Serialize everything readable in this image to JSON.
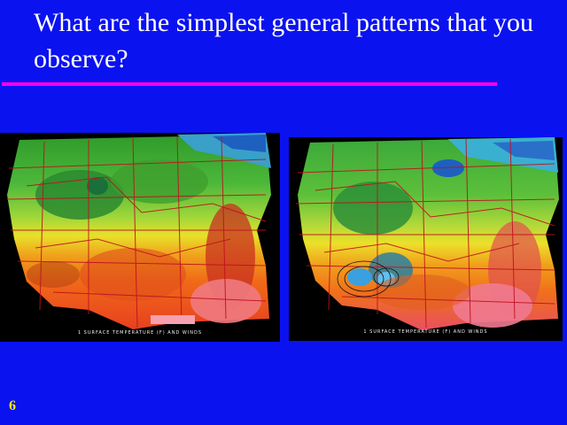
{
  "slide": {
    "title": "What are the simplest general patterns that you observe?",
    "number": "6"
  },
  "maps": [
    {
      "caption": "1 SURFACE TEMPERATURE (F) AND WINDS"
    },
    {
      "caption": "1 SURFACE TEMPERATURE (F) AND WINDS"
    }
  ],
  "colors": {
    "background": "#0b12f0",
    "title_text": "#ffffff",
    "rule": "#ff00e6",
    "slide_number": "#f0f000"
  }
}
